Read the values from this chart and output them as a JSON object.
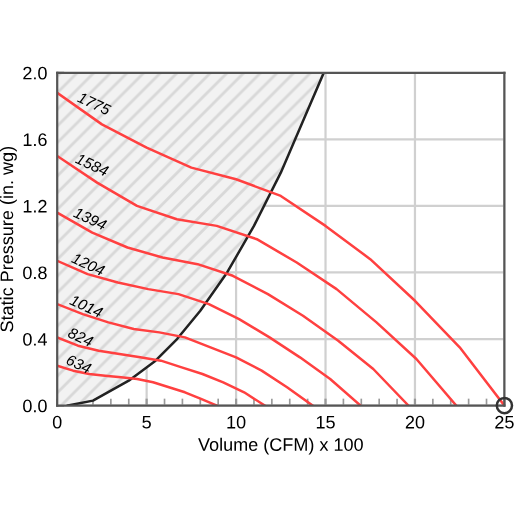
{
  "chart_data": {
    "type": "line",
    "xlabel": "Volume (CFM) x 100",
    "ylabel": "Static Pressure (in. wg)",
    "xlim": [
      0,
      25
    ],
    "xticks": [
      0,
      5,
      10,
      15,
      20,
      25
    ],
    "ylim": [
      0,
      2.0
    ],
    "yticks": [
      {
        "value": 0,
        "label": "0.0"
      },
      {
        "value": 0.4,
        "label": "0.4"
      },
      {
        "value": 0.8,
        "label": "0.8"
      },
      {
        "value": 1.2,
        "label": "1.2"
      },
      {
        "value": 1.6,
        "label": "1.6"
      },
      {
        "value": 2.0,
        "label": "2.0"
      }
    ],
    "grid": true,
    "legend": false,
    "series": [
      {
        "type": "line",
        "color": "#222222",
        "x": [
          0.6,
          2,
          4,
          5.5,
          6.7,
          8,
          9.5,
          11,
          12.5,
          13.7,
          14.9
        ],
        "values": [
          0,
          0.03,
          0.15,
          0.27,
          0.4,
          0.57,
          0.8,
          1.08,
          1.4,
          1.7,
          2.0
        ]
      },
      {
        "name": "1775",
        "color": "#ff4040",
        "x": [
          0,
          2.5,
          5,
          7.5,
          10,
          12.5,
          15,
          17.5,
          20,
          22.5,
          25
        ],
        "values": [
          1.88,
          1.69,
          1.55,
          1.43,
          1.36,
          1.26,
          1.08,
          0.88,
          0.63,
          0.35,
          0
        ]
      },
      {
        "name": "1584",
        "color": "#ff4040",
        "x": [
          0,
          2.23,
          4.46,
          6.69,
          8.92,
          11.16,
          13.39,
          15.62,
          17.85,
          20.08,
          22.31
        ],
        "values": [
          1.5,
          1.34,
          1.2,
          1.12,
          1.08,
          1.0,
          0.86,
          0.7,
          0.5,
          0.28,
          0
        ]
      },
      {
        "name": "1394",
        "color": "#ff4040",
        "x": [
          0,
          1.96,
          3.93,
          5.89,
          7.85,
          9.82,
          11.78,
          13.74,
          15.71,
          17.67,
          19.64
        ],
        "values": [
          1.16,
          1.04,
          0.95,
          0.89,
          0.85,
          0.78,
          0.67,
          0.54,
          0.39,
          0.22,
          0
        ]
      },
      {
        "name": "1204",
        "color": "#ff4040",
        "x": [
          0,
          1.7,
          3.39,
          5.09,
          6.78,
          8.48,
          10.17,
          11.87,
          13.57,
          15.26,
          16.96
        ],
        "values": [
          0.87,
          0.79,
          0.74,
          0.7,
          0.67,
          0.61,
          0.52,
          0.41,
          0.29,
          0.16,
          0
        ]
      },
      {
        "name": "1014",
        "color": "#ff4040",
        "x": [
          0,
          1.43,
          2.86,
          4.28,
          5.71,
          7.14,
          8.57,
          10.0,
          11.43,
          12.85,
          14.28
        ],
        "values": [
          0.61,
          0.55,
          0.5,
          0.46,
          0.44,
          0.41,
          0.35,
          0.29,
          0.21,
          0.11,
          0
        ]
      },
      {
        "name": "824",
        "color": "#ff4040",
        "x": [
          0,
          1.16,
          2.32,
          3.48,
          4.64,
          5.8,
          6.96,
          8.12,
          9.28,
          10.45,
          11.61
        ],
        "values": [
          0.41,
          0.36,
          0.33,
          0.31,
          0.29,
          0.27,
          0.23,
          0.19,
          0.14,
          0.08,
          0
        ]
      },
      {
        "name": "634",
        "color": "#ff4040",
        "x": [
          0,
          0.89,
          1.79,
          2.68,
          3.57,
          4.47,
          5.36,
          6.25,
          7.14,
          8.04,
          8.93
        ],
        "values": [
          0.24,
          0.21,
          0.19,
          0.18,
          0.17,
          0.16,
          0.14,
          0.11,
          0.08,
          0.04,
          0
        ]
      },
      {
        "type": "scatter",
        "marker": "circle",
        "color": "#333333",
        "x": [
          25
        ],
        "values": [
          0
        ]
      }
    ]
  }
}
